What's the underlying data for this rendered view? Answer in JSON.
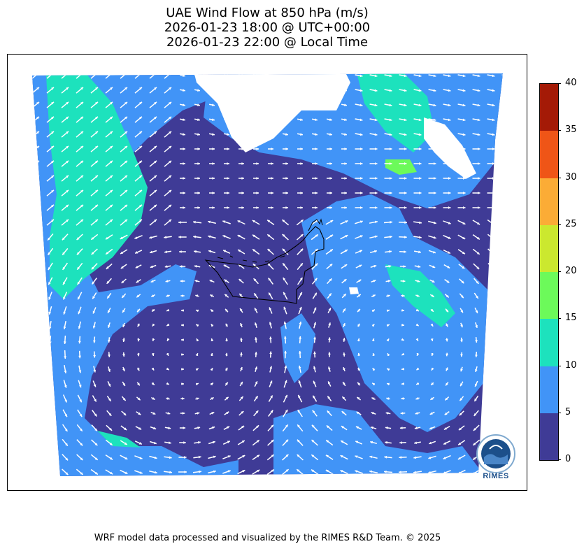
{
  "title": {
    "line1": "UAE Wind Flow at 850 hPa (m/s)",
    "line2": "2026-01-23 18:00 @ UTC+00:00",
    "line3": "2026-01-23 22:00 @ Local Time"
  },
  "map": {
    "region": "UAE and surrounding Arabian Peninsula",
    "level": "850 hPa",
    "variable": "wind speed with direction arrows",
    "arrow_color": "#ffffff",
    "boundary_color": "#000000"
  },
  "colorbar": {
    "units": "m/s",
    "ticks": [
      "0",
      "5",
      "10",
      "15",
      "20",
      "25",
      "30",
      "35",
      "40"
    ],
    "levels": [
      {
        "min": 0,
        "max": 5,
        "color": "#3f3b96"
      },
      {
        "min": 5,
        "max": 10,
        "color": "#4194f7"
      },
      {
        "min": 10,
        "max": 15,
        "color": "#1de2bd"
      },
      {
        "min": 15,
        "max": 20,
        "color": "#6cfa5a"
      },
      {
        "min": 20,
        "max": 25,
        "color": "#cbe82f"
      },
      {
        "min": 25,
        "max": 30,
        "color": "#fbac36"
      },
      {
        "min": 30,
        "max": 35,
        "color": "#ef5517"
      },
      {
        "min": 35,
        "max": 40,
        "color": "#a41a06"
      }
    ]
  },
  "logo": {
    "text": "RIMES",
    "icon": "rimes-logo-icon"
  },
  "footer": "WRF model data processed and visualized by the RIMES R&D Team. © 2025"
}
